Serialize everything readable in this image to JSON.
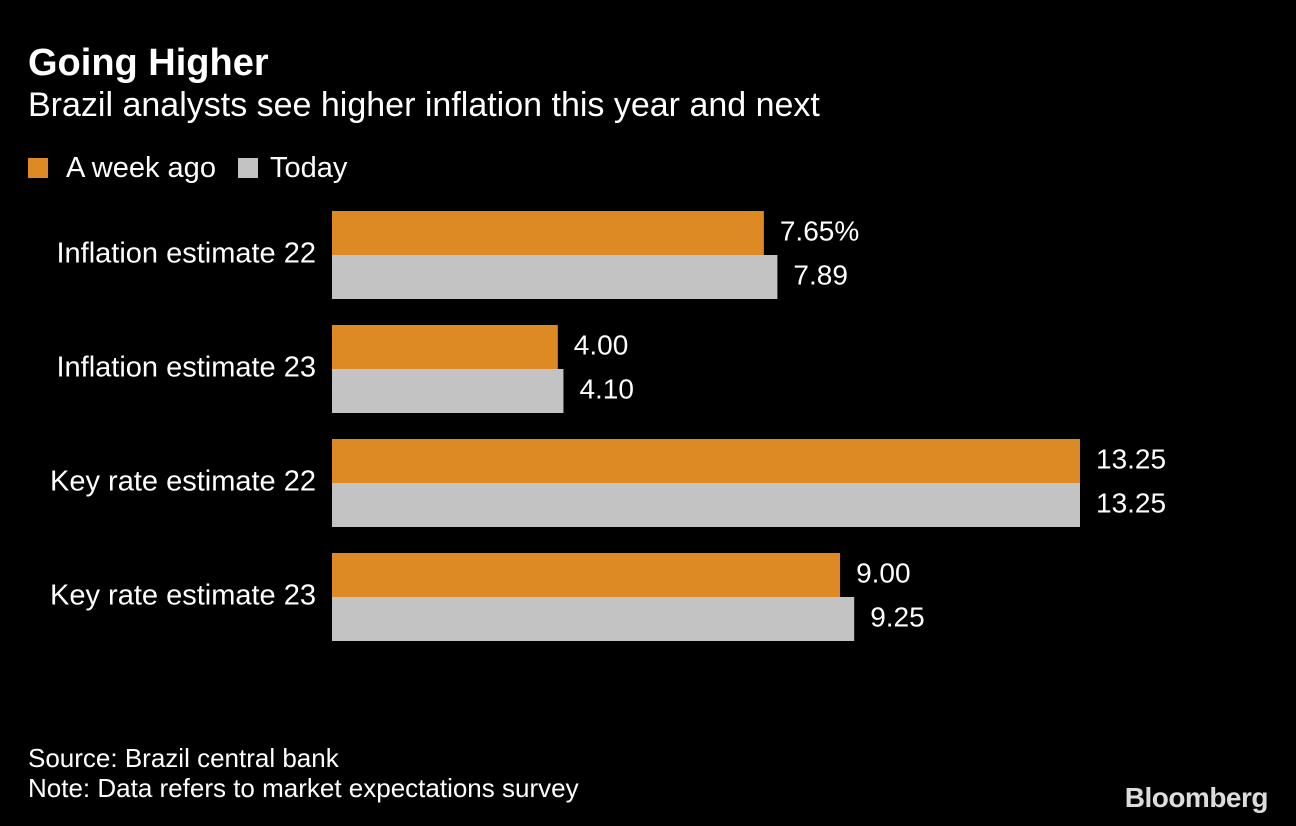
{
  "header": {
    "title": "Going Higher",
    "subtitle": "Brazil analysts see higher inflation this year and next"
  },
  "legend": {
    "items": [
      {
        "label": "A week ago",
        "color": "#DD8A25"
      },
      {
        "label": "Today",
        "color": "#C3C3C3"
      }
    ]
  },
  "chart_data": {
    "type": "bar",
    "orientation": "horizontal",
    "categories": [
      "Inflation estimate 22",
      "Inflation estimate 23",
      "Key rate estimate 22",
      "Key rate estimate 23"
    ],
    "series": [
      {
        "name": "A week ago",
        "color": "#DD8A25",
        "values": [
          7.65,
          4.0,
          13.25,
          9.0
        ]
      },
      {
        "name": "Today",
        "color": "#C3C3C3",
        "values": [
          7.89,
          4.1,
          13.25,
          9.25
        ]
      }
    ],
    "value_labels": [
      [
        "7.65%",
        "7.89"
      ],
      [
        "4.00",
        "4.10"
      ],
      [
        "13.25",
        "13.25"
      ],
      [
        "9.00",
        "9.25"
      ]
    ],
    "xlim": [
      0,
      13.25
    ],
    "grid": false,
    "legend_position": "top-left"
  },
  "footer": {
    "source": "Source: Brazil central bank",
    "note": "Note: Data refers to market expectations survey",
    "brand": "Bloomberg"
  },
  "colors": {
    "background": "#000000",
    "text": "#FFFFFF"
  }
}
